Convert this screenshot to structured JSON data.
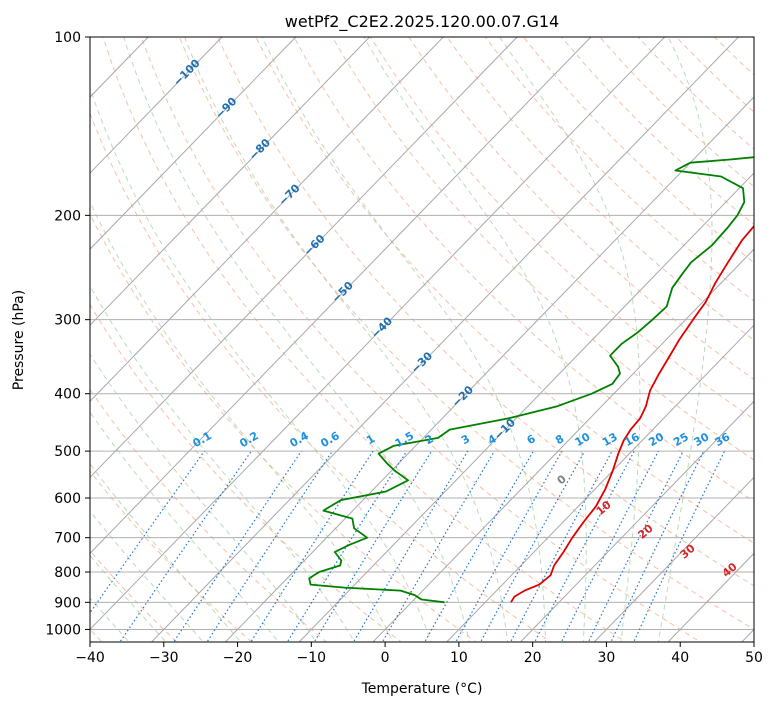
{
  "chart_data": {
    "type": "line",
    "title": "wetPf2_C2E2.2025.120.00.07.G14",
    "xlabel": "Temperature (°C)",
    "ylabel": "Pressure (hPa)",
    "xlim": [
      -40,
      50
    ],
    "ylim": [
      1050,
      100
    ],
    "y_scale": "log",
    "grid": true,
    "x_ticks": [
      -40,
      -30,
      -20,
      -10,
      0,
      10,
      20,
      30,
      40,
      50
    ],
    "x_tick_labels": [
      "−40",
      "−30",
      "−20",
      "−10",
      "0",
      "10",
      "20",
      "30",
      "40",
      "50"
    ],
    "y_ticks": [
      1000,
      900,
      800,
      700,
      600,
      500,
      400,
      300,
      200,
      100
    ],
    "y_tick_labels": [
      "1000",
      "900",
      "800",
      "700",
      "600",
      "500",
      "400",
      "300",
      "200",
      "100"
    ],
    "series": [
      {
        "color": "#e00000",
        "points": [
          [
            13.5,
            900
          ],
          [
            13.2,
            880
          ],
          [
            13.8,
            860
          ],
          [
            15,
            840
          ],
          [
            15.3,
            810
          ],
          [
            14.5,
            780
          ],
          [
            14,
            740
          ],
          [
            13.3,
            700
          ],
          [
            12.8,
            660
          ],
          [
            12.4,
            620
          ],
          [
            11.4,
            580
          ],
          [
            10,
            540
          ],
          [
            8.5,
            505
          ],
          [
            7.5,
            480
          ],
          [
            7,
            460
          ],
          [
            6.8,
            440
          ],
          [
            6,
            420
          ],
          [
            4.5,
            395
          ],
          [
            3.5,
            370
          ],
          [
            2.6,
            345
          ],
          [
            1.8,
            325
          ],
          [
            1,
            300
          ],
          [
            0.4,
            280
          ],
          [
            -0.8,
            260
          ],
          [
            -1.8,
            240
          ],
          [
            -2.8,
            220
          ],
          [
            -3.2,
            200
          ],
          [
            -2.5,
            190
          ],
          [
            0,
            180
          ],
          [
            4,
            170
          ],
          [
            7.5,
            160
          ],
          [
            9.5,
            150
          ],
          [
            11,
            140
          ],
          [
            14,
            130
          ],
          [
            15.5,
            120
          ],
          [
            16.5,
            110
          ],
          [
            19.5,
            100
          ]
        ]
      },
      {
        "color": "#008000",
        "points": [
          [
            4.5,
            900
          ],
          [
            1,
            890
          ],
          [
            -0.5,
            875
          ],
          [
            -3,
            860
          ],
          [
            -11,
            850
          ],
          [
            -16,
            840
          ],
          [
            -17,
            820
          ],
          [
            -16.5,
            800
          ],
          [
            -14.5,
            780
          ],
          [
            -15,
            765
          ],
          [
            -17,
            740
          ],
          [
            -16,
            720
          ],
          [
            -14.5,
            700
          ],
          [
            -17.5,
            675
          ],
          [
            -19,
            650
          ],
          [
            -24,
            630
          ],
          [
            -23,
            605
          ],
          [
            -18,
            585
          ],
          [
            -16.5,
            560
          ],
          [
            -19.5,
            540
          ],
          [
            -21.5,
            525
          ],
          [
            -24,
            505
          ],
          [
            -23,
            490
          ],
          [
            -18,
            475
          ],
          [
            -17.5,
            460
          ],
          [
            -11,
            440
          ],
          [
            -6,
            420
          ],
          [
            -3,
            400
          ],
          [
            -1.5,
            385
          ],
          [
            -1.8,
            370
          ],
          [
            -3,
            360
          ],
          [
            -5.5,
            345
          ],
          [
            -5.5,
            330
          ],
          [
            -4.8,
            315
          ],
          [
            -4.5,
            300
          ],
          [
            -4.3,
            285
          ],
          [
            -6,
            265
          ],
          [
            -6.5,
            250
          ],
          [
            -6.8,
            240
          ],
          [
            -6.2,
            225
          ],
          [
            -6.4,
            210
          ],
          [
            -6.7,
            200
          ],
          [
            -7.5,
            190
          ],
          [
            -9.5,
            180
          ],
          [
            -14,
            172
          ],
          [
            -21,
            168
          ],
          [
            -20,
            163
          ],
          [
            -15,
            161
          ],
          [
            -9,
            158
          ],
          [
            -5.2,
            150
          ],
          [
            -7.5,
            140
          ],
          [
            -8.5,
            135
          ],
          [
            -9,
            130
          ],
          [
            -5.5,
            120
          ],
          [
            -4.8,
            110
          ],
          [
            0,
            100
          ]
        ]
      }
    ],
    "isotherm_labels": [
      "−100",
      "−90",
      "−80",
      "−70",
      "−60",
      "−50",
      "−40",
      "−30",
      "−20",
      "−10"
    ],
    "mixing_ratio_labels": [
      "0.1",
      "0.2",
      "0.4",
      "0.6",
      "1",
      "1.5",
      "2",
      "3",
      "4",
      "6",
      "8",
      "10",
      "13",
      "16",
      "20",
      "25",
      "30",
      "36"
    ],
    "adiabat_labels": [
      "0",
      "10",
      "20",
      "30",
      "40"
    ]
  }
}
